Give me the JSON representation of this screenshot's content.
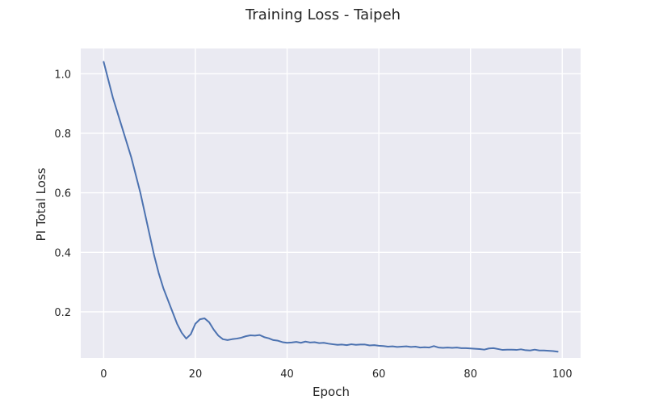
{
  "chart_data": {
    "type": "line",
    "title": "Training Loss - Taipeh",
    "xlabel": "Epoch",
    "ylabel": "PI Total Loss",
    "xlim": [
      -5,
      104
    ],
    "ylim": [
      0.045,
      1.085
    ],
    "xticks": [
      0,
      20,
      40,
      60,
      80,
      100
    ],
    "yticks": [
      0.2,
      0.4,
      0.6,
      0.8,
      1.0
    ],
    "xtick_labels": [
      "0",
      "20",
      "40",
      "60",
      "80",
      "100"
    ],
    "ytick_labels": [
      "0.2",
      "0.4",
      "0.6",
      "0.8",
      "1.0"
    ],
    "grid": true,
    "background": "#eaeaf2",
    "line_color": "#4c72b0",
    "series": [
      {
        "x": [
          0,
          1,
          2,
          3,
          4,
          5,
          6,
          7,
          8,
          9,
          10,
          11,
          12,
          13,
          14,
          15,
          16,
          17,
          18,
          19,
          20,
          21,
          22,
          23,
          24,
          25,
          26,
          27,
          28,
          29,
          30,
          31,
          32,
          33,
          34,
          35,
          36,
          37,
          38,
          39,
          40,
          41,
          42,
          43,
          44,
          45,
          46,
          47,
          48,
          49,
          50,
          51,
          52,
          53,
          54,
          55,
          56,
          57,
          58,
          59,
          60,
          61,
          62,
          63,
          64,
          65,
          66,
          67,
          68,
          69,
          70,
          71,
          72,
          73,
          74,
          75,
          76,
          77,
          78,
          79,
          80,
          81,
          82,
          83,
          84,
          85,
          86,
          87,
          88,
          89,
          90,
          91,
          92,
          93,
          94,
          95,
          96,
          97,
          98,
          99
        ],
        "values": [
          1.04,
          0.98,
          0.92,
          0.87,
          0.82,
          0.77,
          0.72,
          0.66,
          0.6,
          0.53,
          0.46,
          0.39,
          0.33,
          0.28,
          0.24,
          0.2,
          0.16,
          0.13,
          0.11,
          0.125,
          0.16,
          0.175,
          0.178,
          0.165,
          0.14,
          0.12,
          0.108,
          0.105,
          0.108,
          0.11,
          0.113,
          0.118,
          0.121,
          0.12,
          0.122,
          0.115,
          0.111,
          0.105,
          0.103,
          0.098,
          0.096,
          0.097,
          0.099,
          0.096,
          0.1,
          0.097,
          0.098,
          0.095,
          0.096,
          0.093,
          0.091,
          0.089,
          0.09,
          0.088,
          0.091,
          0.089,
          0.09,
          0.09,
          0.087,
          0.088,
          0.086,
          0.085,
          0.083,
          0.084,
          0.082,
          0.083,
          0.084,
          0.082,
          0.083,
          0.08,
          0.081,
          0.08,
          0.085,
          0.08,
          0.079,
          0.08,
          0.079,
          0.08,
          0.078,
          0.078,
          0.077,
          0.076,
          0.075,
          0.073,
          0.077,
          0.078,
          0.075,
          0.072,
          0.073,
          0.073,
          0.072,
          0.074,
          0.071,
          0.07,
          0.073,
          0.07,
          0.07,
          0.069,
          0.068,
          0.066
        ]
      }
    ]
  }
}
